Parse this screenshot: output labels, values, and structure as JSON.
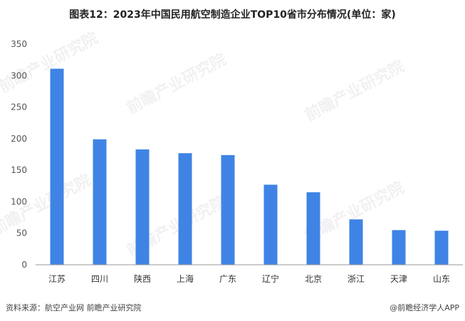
{
  "title": "图表12：2023年中国民用航空制造企业TOP10省市分布情况(单位：家)",
  "footer": {
    "source": "资料来源：航空产业网 前瞻产业研究院",
    "brand": "@前瞻经济学人APP"
  },
  "watermark": "前瞻产业研究院",
  "colors": {
    "bar": "#3f84e5",
    "axis": "#999999"
  },
  "chart_data": {
    "type": "bar",
    "title": "图表12：2023年中国民用航空制造企业TOP10省市分布情况(单位：家)",
    "categories": [
      "江苏",
      "四川",
      "陕西",
      "上海",
      "广东",
      "辽宁",
      "北京",
      "浙江",
      "天津",
      "山东"
    ],
    "values": [
      311,
      199,
      183,
      177,
      174,
      127,
      115,
      72,
      55,
      54
    ],
    "ylim": [
      0,
      350
    ],
    "yticks": [
      0,
      50,
      100,
      150,
      200,
      250,
      300,
      350
    ],
    "xlabel": "",
    "ylabel": "",
    "grid": false
  }
}
